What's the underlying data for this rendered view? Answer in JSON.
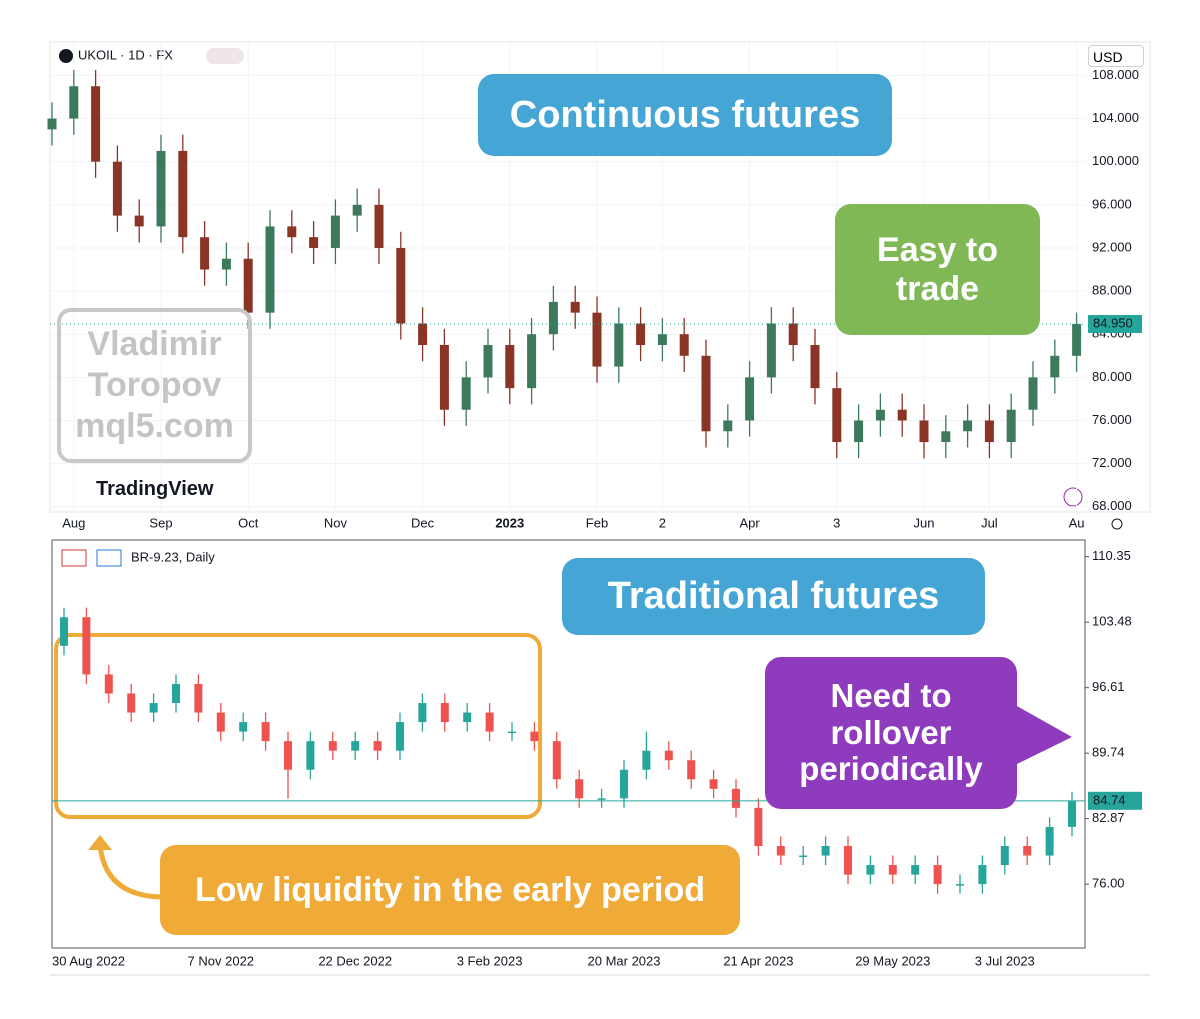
{
  "chart_data": [
    {
      "type": "candlestick",
      "title": "UKOIL · 1D · FX",
      "currency": "USD",
      "categories": [
        null,
        "Aug",
        null,
        null,
        null,
        "Sep",
        null,
        null,
        null,
        "Oct",
        null,
        null,
        null,
        "Nov",
        null,
        null,
        null,
        "Dec",
        null,
        null,
        null,
        "2023",
        null,
        null,
        null,
        "Feb",
        null,
        null,
        "2",
        null,
        null,
        null,
        "Apr",
        null,
        null,
        null,
        "3",
        null,
        null,
        null,
        "Jun",
        null,
        null,
        "Jul",
        null,
        null,
        null,
        "Au"
      ],
      "open": [
        103,
        104,
        107,
        100,
        95,
        94,
        101,
        93,
        90,
        91,
        86,
        94,
        93,
        92,
        95,
        96,
        92,
        85,
        83,
        77,
        80,
        83,
        79,
        84,
        87,
        86,
        81,
        85,
        83,
        84,
        82,
        75,
        76,
        80,
        85,
        83,
        79,
        74,
        76,
        77,
        76,
        74,
        75,
        76,
        74,
        77,
        80,
        82
      ],
      "high": [
        105.5,
        108.5,
        108.5,
        101.5,
        96.5,
        102.5,
        102.5,
        94.5,
        92.5,
        92.5,
        95.5,
        95.5,
        94.5,
        96.5,
        97.5,
        97.5,
        93.5,
        86.5,
        84.5,
        81.5,
        84.5,
        84.5,
        85.5,
        88.5,
        88.5,
        87.5,
        86.5,
        86.5,
        85.5,
        85.5,
        83.5,
        77.5,
        81.5,
        86.5,
        86.5,
        84.5,
        80.5,
        77.5,
        78.5,
        78.5,
        77.5,
        76.5,
        77.5,
        77.5,
        78.5,
        81.5,
        83.5,
        86
      ],
      "low": [
        101.5,
        102.5,
        98.5,
        93.5,
        92.5,
        92.5,
        91.5,
        88.5,
        88.5,
        84.5,
        84.5,
        91.5,
        90.5,
        90.5,
        93.5,
        90.5,
        83.5,
        81.5,
        75.5,
        75.5,
        78.5,
        77.5,
        77.5,
        82.5,
        84.5,
        79.5,
        79.5,
        81.5,
        81.5,
        80.5,
        73.5,
        73.5,
        74.5,
        78.5,
        81.5,
        77.5,
        72.5,
        72.5,
        74.5,
        74.5,
        72.5,
        72.5,
        73.5,
        72.5,
        72.5,
        75.5,
        78.5,
        80.5
      ],
      "close": [
        104,
        107,
        100,
        95,
        94,
        101,
        93,
        90,
        91,
        86,
        94,
        93,
        92,
        95,
        96,
        92,
        85,
        83,
        77,
        80,
        83,
        79,
        84,
        87,
        86,
        81,
        85,
        83,
        84,
        82,
        75,
        76,
        80,
        85,
        83,
        79,
        74,
        76,
        77,
        76,
        74,
        75,
        76,
        74,
        77,
        80,
        82,
        84.95
      ],
      "up_color": "#3d7a5c",
      "down_color": "#8a3426",
      "ylim": [
        67.7,
        111.1
      ],
      "yticks": [
        {
          "value": 68,
          "label": "68.000"
        },
        {
          "value": 72,
          "label": "72.000"
        },
        {
          "value": 76,
          "label": "76.000"
        },
        {
          "value": 80,
          "label": "80.000"
        },
        {
          "value": 84,
          "label": "84.000"
        },
        {
          "value": 88,
          "label": "88.000"
        },
        {
          "value": 92,
          "label": "92.000"
        },
        {
          "value": 96,
          "label": "96.000"
        },
        {
          "value": 100,
          "label": "100.000"
        },
        {
          "value": 104,
          "label": "104.000"
        },
        {
          "value": 108,
          "label": "108.000"
        }
      ],
      "last_price": {
        "value": 84.95,
        "label": "84.950"
      },
      "price_color": "#26a69a",
      "grid": true
    },
    {
      "type": "candlestick",
      "title": "BR-9.23, Daily",
      "categories": [
        "30 Aug 2022",
        null,
        null,
        null,
        null,
        null,
        null,
        "7 Nov 2022",
        null,
        null,
        null,
        null,
        null,
        "22 Dec 2022",
        null,
        null,
        null,
        null,
        null,
        "3 Feb 2023",
        null,
        null,
        null,
        null,
        null,
        "20 Mar 2023",
        null,
        null,
        null,
        null,
        null,
        "21 Apr 2023",
        null,
        null,
        null,
        null,
        null,
        "29 May 2023",
        null,
        null,
        null,
        null,
        "3 Jul 2023",
        null,
        null,
        null
      ],
      "open": [
        101,
        104,
        98,
        96,
        94,
        95,
        97,
        94,
        92,
        93,
        91,
        88,
        91,
        90,
        91,
        90,
        93,
        95,
        93,
        94,
        92,
        92,
        91,
        87,
        85,
        85,
        88,
        90,
        89,
        87,
        86,
        84,
        80,
        79,
        79,
        80,
        77,
        78,
        77,
        78,
        76,
        76,
        78,
        80,
        79,
        82
      ],
      "high": [
        105,
        105,
        99,
        97,
        96,
        98,
        98,
        95,
        94,
        94,
        92,
        92,
        92,
        92,
        92,
        94,
        96,
        96,
        95,
        95,
        93,
        93,
        92,
        88,
        86,
        89,
        92,
        91,
        90,
        88,
        87,
        85,
        81,
        80,
        81,
        81,
        79,
        79,
        79,
        79,
        77,
        79,
        81,
        81,
        83,
        85.7
      ],
      "low": [
        100,
        97,
        95,
        93,
        93,
        94,
        93,
        91,
        91,
        90,
        85,
        87,
        89,
        89,
        89,
        89,
        92,
        92,
        92,
        91,
        91,
        90,
        86,
        84,
        84,
        84,
        87,
        88,
        86,
        85,
        83,
        79,
        78,
        78,
        78,
        76,
        76,
        76,
        76,
        75,
        75,
        75,
        77,
        78,
        78,
        81
      ],
      "close": [
        104,
        98,
        96,
        94,
        95,
        97,
        94,
        92,
        93,
        91,
        88,
        91,
        90,
        91,
        90,
        93,
        95,
        93,
        94,
        92,
        92,
        91,
        87,
        85,
        85,
        88,
        90,
        89,
        87,
        86,
        84,
        80,
        79,
        79,
        80,
        77,
        78,
        77,
        78,
        76,
        76,
        78,
        80,
        79,
        82,
        84.74
      ],
      "up_color": "#26a69a",
      "down_color": "#ef5350",
      "ylim": [
        69.3,
        112.1
      ],
      "yticks": [
        {
          "value": 76,
          "label": "76.00"
        },
        {
          "value": 82.87,
          "label": "82.87"
        },
        {
          "value": 89.74,
          "label": "89.74"
        },
        {
          "value": 96.61,
          "label": "96.61"
        },
        {
          "value": 103.48,
          "label": "103.48"
        },
        {
          "value": 110.35,
          "label": "110.35"
        }
      ],
      "last_price": 84.74,
      "price_color": "#26a69a",
      "grid": false
    }
  ],
  "annotations": [
    {
      "text": "Continuous futures",
      "color": "#45a6d6"
    },
    {
      "text": "Easy to trade",
      "color": "#80b856"
    },
    {
      "text": "Traditional futures",
      "color": "#45a6d6"
    },
    {
      "text": "Need to rollover periodically",
      "color": "#8e3bbd"
    },
    {
      "text": "Low liquidity in the early period",
      "color": "#f0aa38"
    }
  ],
  "watermark": [
    "Vladimir",
    "Toropov",
    "mql5.com"
  ],
  "brand": "TradingView"
}
